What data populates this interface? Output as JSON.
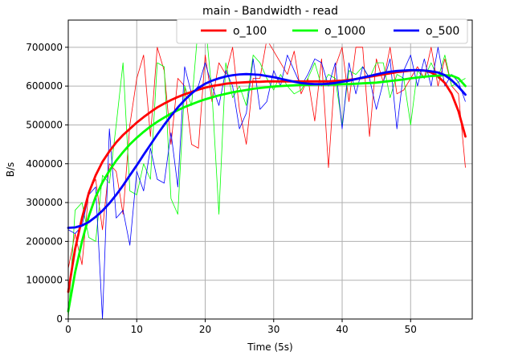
{
  "chart_data": {
    "type": "line",
    "title": "main - Bandwidth - read",
    "xlabel": "Time (5s)",
    "ylabel": "B/s",
    "xlim": [
      0,
      59
    ],
    "ylim": [
      0,
      770000
    ],
    "x_ticks": [
      0,
      10,
      20,
      30,
      40,
      50
    ],
    "y_ticks": [
      0,
      100000,
      200000,
      300000,
      400000,
      500000,
      600000,
      700000
    ],
    "grid": true,
    "legend_position": "top-right",
    "series": [
      {
        "name": "o_100",
        "color": "#ff0000",
        "raw": [
          130000,
          220000,
          140000,
          330000,
          360000,
          230000,
          400000,
          380000,
          270000,
          500000,
          620000,
          680000,
          470000,
          700000,
          640000,
          450000,
          620000,
          600000,
          450000,
          440000,
          680000,
          560000,
          660000,
          630000,
          700000,
          540000,
          450000,
          620000,
          620000,
          720000,
          690000,
          660000,
          630000,
          690000,
          580000,
          620000,
          510000,
          670000,
          390000,
          650000,
          700000,
          560000,
          700000,
          700000,
          470000,
          670000,
          610000,
          700000,
          580000,
          590000,
          620000,
          650000,
          620000,
          700000,
          600000,
          670000,
          600000,
          580000,
          390000
        ],
        "smooth": [
          70000,
          180000,
          260000,
          325000,
          370000,
          405000,
          432000,
          455000,
          474000,
          490000,
          506000,
          520000,
          533000,
          545000,
          555000,
          564000,
          572000,
          579000,
          585000,
          591000,
          596000,
          600000,
          603000,
          606000,
          608000,
          609000,
          610000,
          611000,
          611000,
          612000,
          612000,
          612000,
          612000,
          612000,
          612000,
          612000,
          612000,
          612000,
          612000,
          613000,
          614000,
          616000,
          618000,
          621000,
          624000,
          627000,
          630000,
          633000,
          636000,
          638000,
          640000,
          641000,
          640000,
          635000,
          625000,
          608000,
          580000,
          535000,
          470000
        ]
      },
      {
        "name": "o_1000",
        "color": "#00ff00",
        "raw": [
          0,
          280000,
          300000,
          210000,
          200000,
          370000,
          350000,
          500000,
          660000,
          330000,
          320000,
          400000,
          360000,
          660000,
          650000,
          310000,
          270000,
          600000,
          550000,
          760000,
          770000,
          580000,
          270000,
          660000,
          570000,
          600000,
          550000,
          680000,
          660000,
          620000,
          590000,
          630000,
          600000,
          580000,
          590000,
          620000,
          660000,
          600000,
          630000,
          620000,
          500000,
          640000,
          630000,
          650000,
          620000,
          660000,
          660000,
          570000,
          630000,
          620000,
          500000,
          640000,
          620000,
          660000,
          620000,
          680000,
          600000,
          610000,
          620000
        ],
        "smooth": [
          20000,
          120000,
          200000,
          265000,
          315000,
          352000,
          382000,
          408000,
          430000,
          450000,
          467000,
          482000,
          496000,
          508000,
          519000,
          529000,
          538000,
          546000,
          553000,
          560000,
          566000,
          571000,
          576000,
          580000,
          584000,
          587000,
          590000,
          593000,
          595000,
          597000,
          599000,
          600000,
          601000,
          602000,
          603000,
          603000,
          604000,
          604000,
          604000,
          604000,
          605000,
          605000,
          606000,
          607000,
          608000,
          609000,
          611000,
          613000,
          615000,
          617000,
          620000,
          622000,
          624000,
          626000,
          627000,
          628000,
          627000,
          620000,
          600000
        ]
      },
      {
        "name": "o_500",
        "color": "#0000ff",
        "raw": [
          230000,
          220000,
          240000,
          320000,
          340000,
          0,
          490000,
          260000,
          280000,
          190000,
          380000,
          330000,
          440000,
          360000,
          350000,
          480000,
          340000,
          650000,
          580000,
          600000,
          660000,
          600000,
          550000,
          640000,
          600000,
          490000,
          530000,
          670000,
          540000,
          560000,
          640000,
          600000,
          680000,
          640000,
          600000,
          630000,
          670000,
          660000,
          600000,
          660000,
          490000,
          660000,
          580000,
          650000,
          620000,
          540000,
          610000,
          670000,
          490000,
          640000,
          680000,
          600000,
          670000,
          600000,
          700000,
          600000,
          630000,
          610000,
          560000
        ],
        "smooth": [
          235000,
          236000,
          241000,
          250000,
          263000,
          279000,
          298000,
          320000,
          344000,
          370000,
          396000,
          423000,
          449000,
          475000,
          500000,
          523000,
          545000,
          564000,
          581000,
          595000,
          606000,
          614000,
          620000,
          625000,
          628000,
          630000,
          631000,
          630000,
          629000,
          626000,
          623000,
          619000,
          615000,
          611000,
          608000,
          606000,
          605000,
          605000,
          606000,
          608000,
          611000,
          614000,
          618000,
          622000,
          626000,
          630000,
          634000,
          637000,
          639000,
          640000,
          641000,
          641000,
          640000,
          638000,
          635000,
          628000,
          615000,
          598000,
          578000
        ]
      }
    ]
  }
}
